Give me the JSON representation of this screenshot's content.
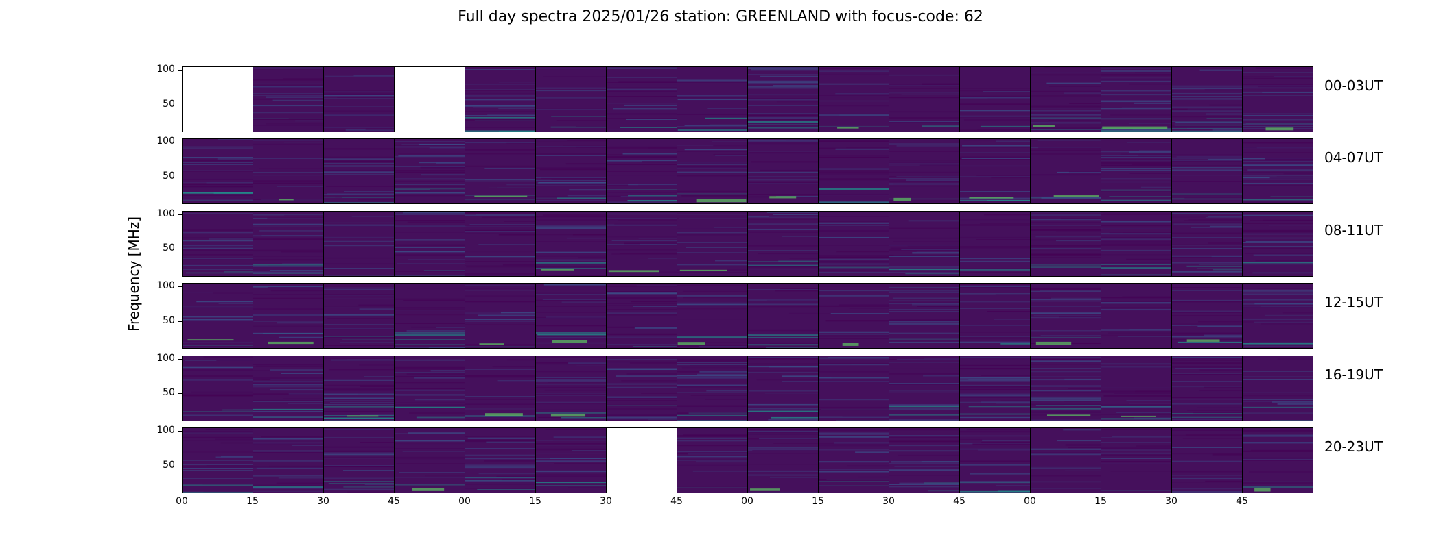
{
  "title": "Full day spectra 2025/01/26 station: GREENLAND with focus-code: 62",
  "chart_data": {
    "type": "heatmap",
    "title": "Full day spectra 2025/01/26 station: GREENLAND with focus-code: 62",
    "ylabel": "Frequency [MHz]",
    "xlabel": "",
    "ylim": [
      10,
      105
    ],
    "yticks": [
      "100",
      "50"
    ],
    "ytick_values": [
      100,
      50
    ],
    "xtick_labels": [
      "00",
      "15",
      "30",
      "45",
      "00",
      "15",
      "30",
      "45",
      "00",
      "15",
      "30",
      "45",
      "00",
      "15",
      "30",
      "45"
    ],
    "rows": [
      "00-03UT",
      "04-07UT",
      "08-11UT",
      "12-15UT",
      "16-19UT",
      "20-23UT"
    ],
    "panels_per_row": 16,
    "missing_panels": [
      {
        "row": 0,
        "col": 0
      },
      {
        "row": 0,
        "col": 3
      },
      {
        "row": 5,
        "col": 6
      }
    ],
    "colormap": [
      "#440154",
      "#3b528b",
      "#21918c",
      "#5ec962"
    ],
    "background_color": "#45105c"
  }
}
